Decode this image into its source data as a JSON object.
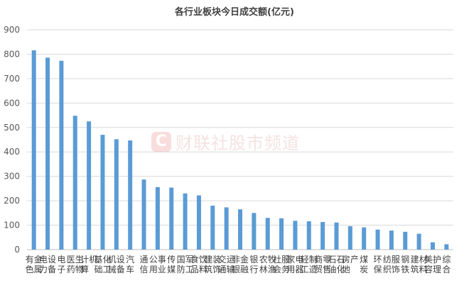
{
  "chart_data": {
    "type": "bar",
    "title": "各行业板块今日成交额(亿元)",
    "xlabel": "",
    "ylabel": "",
    "ylim": [
      0,
      900
    ],
    "yticks": [
      0,
      100,
      200,
      300,
      400,
      500,
      600,
      700,
      800,
      900
    ],
    "grid": true,
    "legend": "none",
    "bar_color": "#5b9bd5",
    "categories": [
      "有色金属",
      "电力设备",
      "电子",
      "医药生物",
      "计算机",
      "基础化工",
      "机械设备",
      "汽车",
      "通信",
      "公用事业",
      "传媒",
      "国防军工",
      "食品饮料",
      "建筑装饰",
      "交通运输",
      "非银金融",
      "银行",
      "农林牧渔",
      "社会服务",
      "家用电器",
      "轻工制造",
      "商贸零售",
      "石油石化",
      "房地产",
      "煤炭",
      "环保",
      "纺织服饰",
      "钢铁",
      "建筑材料",
      "美容护理",
      "综合"
    ],
    "values": [
      816,
      786,
      773,
      548,
      525,
      470,
      452,
      447,
      287,
      256,
      254,
      230,
      222,
      180,
      173,
      165,
      150,
      130,
      128,
      118,
      116,
      113,
      111,
      96,
      91,
      82,
      78,
      73,
      65,
      30,
      22
    ]
  },
  "watermark": {
    "logo_letter": "C",
    "text": "财联社股市频道"
  }
}
